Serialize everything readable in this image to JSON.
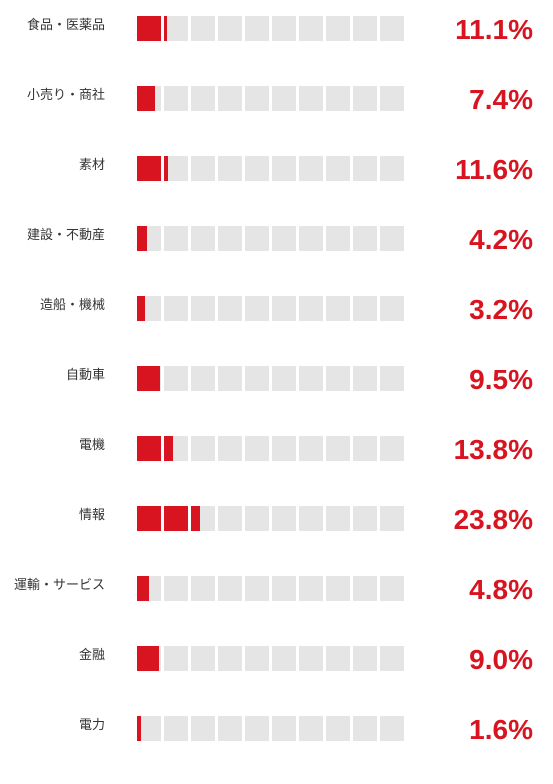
{
  "chart_data": {
    "type": "bar",
    "title": "",
    "xlabel": "",
    "ylabel": "",
    "unit": "%",
    "cells_per_row": 10,
    "percent_per_cell": 10,
    "colors": {
      "filled": "#d7141f",
      "empty": "#e5e5e5",
      "value_text": "#d7141f",
      "label_text": "#333333"
    },
    "categories": [
      "食品・医薬品",
      "小売り・商社",
      "素材",
      "建設・不動産",
      "造船・機械",
      "自動車",
      "電機",
      "情報",
      "運輸・サービス",
      "金融",
      "電力"
    ],
    "values": [
      11.1,
      7.4,
      11.6,
      4.2,
      3.2,
      9.5,
      13.8,
      23.8,
      4.8,
      9.0,
      1.6
    ],
    "value_labels": [
      "11.1%",
      "7.4%",
      "11.6%",
      "4.2%",
      "3.2%",
      "9.5%",
      "13.8%",
      "23.8%",
      "4.8%",
      "9.0%",
      "1.6%"
    ]
  }
}
